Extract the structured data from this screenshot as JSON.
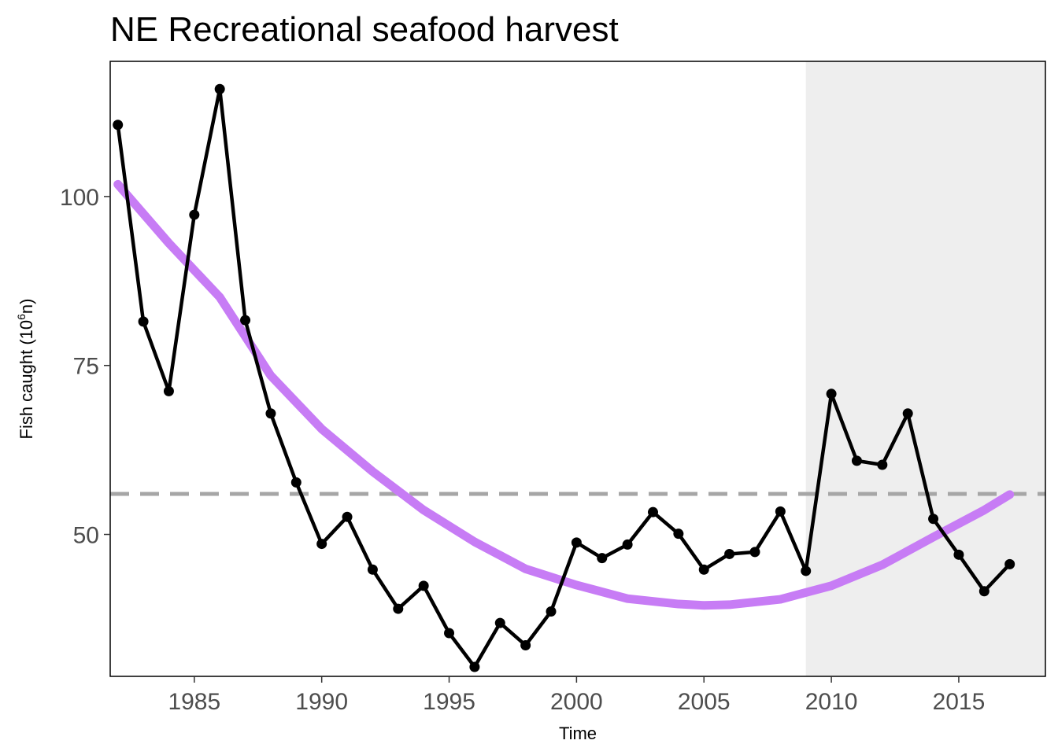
{
  "chart_data": {
    "type": "line",
    "title": "NE Recreational seafood harvest",
    "xlabel": "Time",
    "ylabel_main": "Fish caught (10",
    "ylabel_sup": "6",
    "ylabel_tail": "n)",
    "xlim": [
      1981.7,
      2018.4
    ],
    "ylim": [
      29,
      120
    ],
    "x_ticks": [
      1985,
      1990,
      1995,
      2000,
      2005,
      2010,
      2015
    ],
    "y_ticks": [
      50,
      75,
      100
    ],
    "shaded_region": {
      "x_start": 2009,
      "x_end": 2018.4,
      "color": "#eeeeee"
    },
    "reference_line": {
      "y": 56,
      "color": "#a6a6a6",
      "style": "dashed"
    },
    "series": [
      {
        "type": "line",
        "color": "#000000",
        "x": [
          1982,
          1983,
          1984,
          1985,
          1986,
          1987,
          1988,
          1989,
          1990,
          1991,
          1992,
          1993,
          1994,
          1995,
          1996,
          1997,
          1998,
          1999,
          2000,
          2001,
          2002,
          2003,
          2004,
          2005,
          2006,
          2007,
          2008,
          2009,
          2010,
          2011,
          2012,
          2013,
          2014,
          2015,
          2016,
          2017
        ],
        "values": [
          110.6,
          81.5,
          71.2,
          97.3,
          115.9,
          81.7,
          67.9,
          57.7,
          48.6,
          52.6,
          44.8,
          39.0,
          42.4,
          35.4,
          30.4,
          36.9,
          33.6,
          38.6,
          48.8,
          46.5,
          48.5,
          53.3,
          50.1,
          44.8,
          47.1,
          47.4,
          53.4,
          44.6,
          70.8,
          60.9,
          60.3,
          67.9,
          52.3,
          47.0,
          41.6,
          45.6
        ]
      },
      {
        "type": "trend",
        "color": "#c77cf5",
        "x": [
          1982,
          1984,
          1986,
          1988,
          1990,
          1992,
          1994,
          1996,
          1998,
          2000,
          2002,
          2004,
          2005,
          2006,
          2008,
          2010,
          2012,
          2014,
          2016,
          2017
        ],
        "values": [
          101.8,
          93.1,
          85.1,
          73.5,
          65.6,
          59.3,
          53.6,
          48.9,
          44.9,
          42.5,
          40.5,
          39.7,
          39.5,
          39.6,
          40.4,
          42.4,
          45.5,
          49.6,
          53.6,
          55.9
        ]
      }
    ]
  }
}
